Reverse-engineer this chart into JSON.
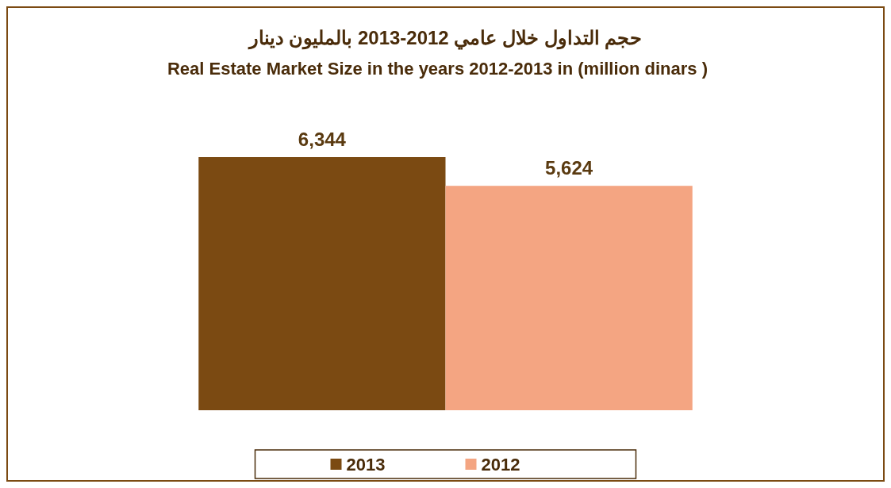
{
  "chart_data": {
    "type": "bar",
    "title": "حجم التداول خلال عامي 2012-2013 بالمليون دينار",
    "subtitle": "Real Estate Market Size in the years 2012-2013 in (million dinars )",
    "categories": [
      null
    ],
    "series": [
      {
        "name": "2013",
        "color": "#7b4a12",
        "values": [
          6344
        ],
        "value_labels": [
          "6,344"
        ]
      },
      {
        "name": "2012",
        "color": "#f4a582",
        "values": [
          5624
        ],
        "value_labels": [
          "5,624"
        ]
      }
    ],
    "legend": "bottom"
  }
}
